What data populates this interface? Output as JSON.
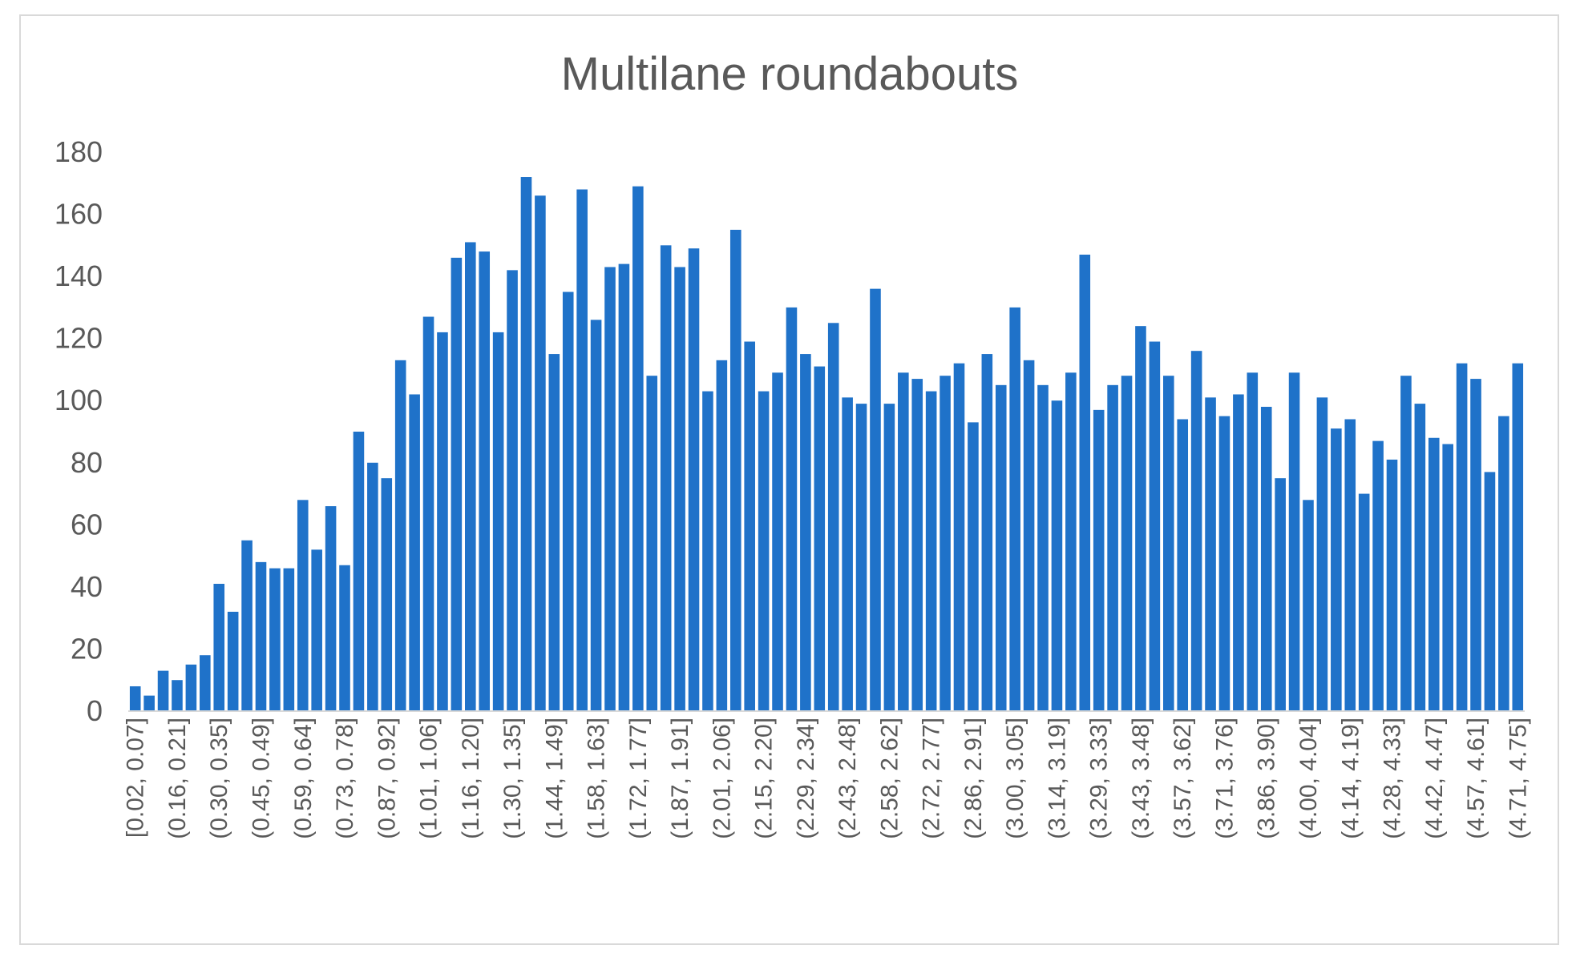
{
  "chart_data": {
    "type": "bar",
    "title": "Multilane roundabouts",
    "xlabel": "",
    "ylabel": "",
    "ylim": [
      0,
      180
    ],
    "yticks": [
      0,
      20,
      40,
      60,
      80,
      100,
      120,
      140,
      160,
      180
    ],
    "grid": false,
    "legend": "none",
    "bar_color": "#1f72c9",
    "labeled_categories": [
      "[0.02, 0.07]",
      "(0.16, 0.21]",
      "(0.30, 0.35]",
      "(0.45, 0.49]",
      "(0.59, 0.64]",
      "(0.73, 0.78]",
      "(0.87, 0.92]",
      "(1.01, 1.06]",
      "(1.16, 1.20]",
      "(1.30, 1.35]",
      "(1.44, 1.49]",
      "(1.58, 1.63]",
      "(1.72, 1.77]",
      "(1.87, 1.91]",
      "(2.01, 2.06]",
      "(2.15, 2.20]",
      "(2.29, 2.34]",
      "(2.43, 2.48]",
      "(2.58, 2.62]",
      "(2.72, 2.77]",
      "(2.86, 2.91]",
      "(3.00, 3.05]",
      "(3.14, 3.19]",
      "(3.29, 3.33]",
      "(3.43, 3.48]",
      "(3.57, 3.62]",
      "(3.71, 3.76]",
      "(3.86, 3.90]",
      "(4.00, 4.04]",
      "(4.14, 4.19]",
      "(4.28, 4.33]",
      "(4.42, 4.47]",
      "(4.57, 4.61]",
      "(4.71, 4.75]"
    ],
    "values": [
      8,
      5,
      13,
      10,
      15,
      18,
      41,
      32,
      55,
      48,
      46,
      46,
      68,
      52,
      66,
      47,
      90,
      80,
      75,
      113,
      102,
      127,
      122,
      146,
      151,
      148,
      122,
      142,
      172,
      166,
      115,
      135,
      168,
      126,
      143,
      144,
      169,
      108,
      150,
      143,
      149,
      103,
      113,
      155,
      119,
      103,
      109,
      130,
      115,
      111,
      125,
      101,
      99,
      136,
      99,
      109,
      107,
      103,
      108,
      112,
      93,
      115,
      105,
      130,
      113,
      105,
      100,
      109,
      147,
      97,
      105,
      108,
      124,
      119,
      108,
      94,
      116,
      101,
      95,
      102,
      109,
      98,
      75,
      109,
      68,
      101,
      91,
      94,
      70,
      87,
      81,
      108,
      99,
      88,
      86,
      112,
      107,
      77,
      95,
      112
    ]
  }
}
